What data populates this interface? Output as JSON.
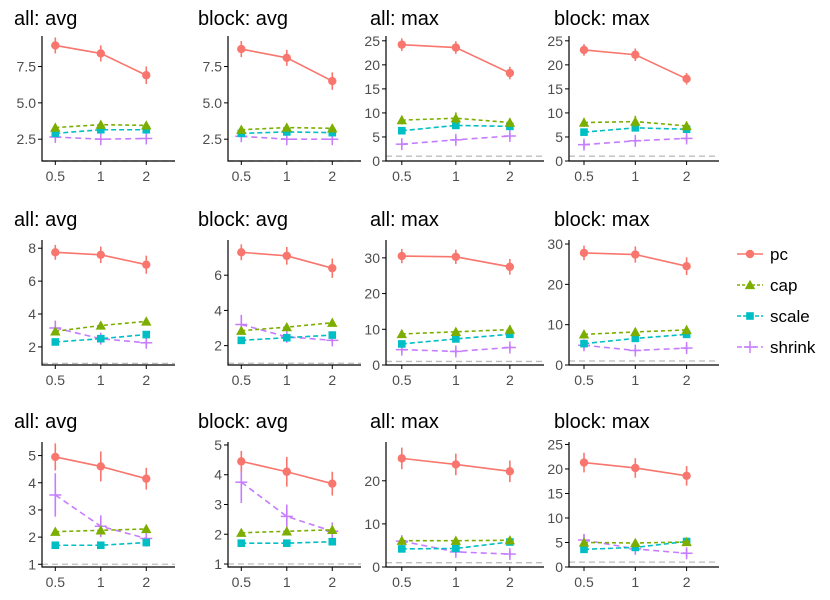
{
  "colors": {
    "pc": "#F8766D",
    "cap": "#7CAE00",
    "scale": "#00BFC4",
    "shrink": "#C77CFF",
    "reference": "#BEBEBE",
    "axis": "#000000"
  },
  "legend": {
    "entries": [
      {
        "key": "pc",
        "label": "pc",
        "icon": "circle-icon"
      },
      {
        "key": "cap",
        "label": "cap",
        "icon": "triangle-icon"
      },
      {
        "key": "scale",
        "label": "scale",
        "icon": "square-icon"
      },
      {
        "key": "shrink",
        "label": "shrink",
        "icon": "plus-icon"
      }
    ]
  },
  "chart_data": [
    {
      "type": "line",
      "title": "all: avg",
      "x": [
        0.5,
        1,
        2
      ],
      "x_labels": [
        "0.5",
        "1",
        "2"
      ],
      "yticks": [
        2.5,
        5.0,
        7.5
      ],
      "ytick_labels": [
        "2.5",
        "5.0",
        "7.5"
      ],
      "ylim": [
        1.0,
        9.6
      ],
      "reference_y": 1.0,
      "series": [
        {
          "name": "pc",
          "values": [
            8.95,
            8.4,
            6.9
          ],
          "err": [
            0.55,
            0.55,
            0.6
          ]
        },
        {
          "name": "cap",
          "values": [
            3.3,
            3.5,
            3.45
          ],
          "err": [
            0.1,
            0.1,
            0.1
          ]
        },
        {
          "name": "scale",
          "values": [
            2.9,
            3.15,
            3.15
          ],
          "err": [
            0.1,
            0.1,
            0.1
          ]
        },
        {
          "name": "shrink",
          "values": [
            2.65,
            2.5,
            2.55
          ],
          "err": [
            0.25,
            0.15,
            0.15
          ]
        }
      ]
    },
    {
      "type": "line",
      "title": "block: avg",
      "x": [
        0.5,
        1,
        2
      ],
      "x_labels": [
        "0.5",
        "1",
        "2"
      ],
      "yticks": [
        2.5,
        5.0,
        7.5
      ],
      "ytick_labels": [
        "2.5",
        "5.0",
        "7.5"
      ],
      "ylim": [
        1.0,
        9.6
      ],
      "reference_y": 1.0,
      "series": [
        {
          "name": "pc",
          "values": [
            8.7,
            8.1,
            6.5
          ],
          "err": [
            0.55,
            0.55,
            0.6
          ]
        },
        {
          "name": "cap",
          "values": [
            3.15,
            3.3,
            3.25
          ],
          "err": [
            0.1,
            0.1,
            0.1
          ]
        },
        {
          "name": "scale",
          "values": [
            2.9,
            3.0,
            2.95
          ],
          "err": [
            0.1,
            0.1,
            0.1
          ]
        },
        {
          "name": "shrink",
          "values": [
            2.7,
            2.5,
            2.5
          ],
          "err": [
            0.25,
            0.15,
            0.15
          ]
        }
      ]
    },
    {
      "type": "line",
      "title": "all: max",
      "x": [
        0.5,
        1,
        2
      ],
      "x_labels": [
        "0.5",
        "1",
        "2"
      ],
      "yticks": [
        0,
        5,
        10,
        15,
        20,
        25
      ],
      "ytick_labels": [
        "0",
        "5",
        "10",
        "15",
        "20",
        "25"
      ],
      "ylim": [
        0,
        26
      ],
      "reference_y": 1.0,
      "series": [
        {
          "name": "pc",
          "values": [
            24.2,
            23.6,
            18.3
          ],
          "err": [
            1.3,
            1.3,
            1.3
          ]
        },
        {
          "name": "cap",
          "values": [
            8.5,
            8.9,
            8.0
          ],
          "err": [
            0.9,
            1.2,
            0.9
          ]
        },
        {
          "name": "scale",
          "values": [
            6.3,
            7.4,
            7.2
          ],
          "err": [
            0.6,
            0.6,
            0.6
          ]
        },
        {
          "name": "shrink",
          "values": [
            3.5,
            4.4,
            5.2
          ],
          "err": [
            0.8,
            0.7,
            0.7
          ]
        }
      ]
    },
    {
      "type": "line",
      "title": "block: max",
      "x": [
        0.5,
        1,
        2
      ],
      "x_labels": [
        "0.5",
        "1",
        "2"
      ],
      "yticks": [
        0,
        5,
        10,
        15,
        20,
        25
      ],
      "ytick_labels": [
        "0",
        "5",
        "10",
        "15",
        "20",
        "25"
      ],
      "ylim": [
        0,
        26
      ],
      "reference_y": 1.0,
      "series": [
        {
          "name": "pc",
          "values": [
            23.1,
            22.1,
            17.1
          ],
          "err": [
            1.2,
            1.3,
            1.2
          ]
        },
        {
          "name": "cap",
          "values": [
            8.0,
            8.2,
            7.3
          ],
          "err": [
            0.9,
            1.2,
            0.9
          ]
        },
        {
          "name": "scale",
          "values": [
            6.0,
            6.9,
            6.6
          ],
          "err": [
            0.6,
            0.6,
            0.6
          ]
        },
        {
          "name": "shrink",
          "values": [
            3.4,
            4.2,
            4.7
          ],
          "err": [
            0.8,
            0.7,
            0.7
          ]
        }
      ]
    },
    {
      "type": "line",
      "title": "all: avg",
      "x": [
        0.5,
        1,
        2
      ],
      "x_labels": [
        "0.5",
        "1",
        "2"
      ],
      "yticks": [
        2,
        4,
        6,
        8
      ],
      "ytick_labels": [
        "2",
        "4",
        "6",
        "8"
      ],
      "ylim": [
        0.9,
        8.5
      ],
      "reference_y": 1.0,
      "series": [
        {
          "name": "pc",
          "values": [
            7.75,
            7.6,
            7.0
          ],
          "err": [
            0.45,
            0.5,
            0.55
          ]
        },
        {
          "name": "cap",
          "values": [
            2.95,
            3.3,
            3.55
          ],
          "err": [
            0.15,
            0.15,
            0.2
          ]
        },
        {
          "name": "scale",
          "values": [
            2.3,
            2.5,
            2.75
          ],
          "err": [
            0.15,
            0.15,
            0.15
          ]
        },
        {
          "name": "shrink",
          "values": [
            3.15,
            2.5,
            2.25
          ],
          "err": [
            0.45,
            0.3,
            0.25
          ]
        }
      ]
    },
    {
      "type": "line",
      "title": "block: avg",
      "x": [
        0.5,
        1,
        2
      ],
      "x_labels": [
        "0.5",
        "1",
        "2"
      ],
      "yticks": [
        2,
        4,
        6
      ],
      "ytick_labels": [
        "2",
        "4",
        "6"
      ],
      "ylim": [
        0.9,
        8.0
      ],
      "reference_y": 1.0,
      "series": [
        {
          "name": "pc",
          "values": [
            7.3,
            7.1,
            6.4
          ],
          "err": [
            0.45,
            0.5,
            0.55
          ]
        },
        {
          "name": "cap",
          "values": [
            2.85,
            3.05,
            3.3
          ],
          "err": [
            0.15,
            0.15,
            0.2
          ]
        },
        {
          "name": "scale",
          "values": [
            2.3,
            2.45,
            2.6
          ],
          "err": [
            0.15,
            0.15,
            0.15
          ]
        },
        {
          "name": "shrink",
          "values": [
            3.2,
            2.5,
            2.3
          ],
          "err": [
            0.55,
            0.3,
            0.25
          ]
        }
      ]
    },
    {
      "type": "line",
      "title": "all: max",
      "x": [
        0.5,
        1,
        2
      ],
      "x_labels": [
        "0.5",
        "1",
        "2"
      ],
      "yticks": [
        0,
        10,
        20,
        30
      ],
      "ytick_labels": [
        "0",
        "10",
        "20",
        "30"
      ],
      "ylim": [
        0,
        35
      ],
      "reference_y": 1.0,
      "series": [
        {
          "name": "pc",
          "values": [
            30.5,
            30.3,
            27.5
          ],
          "err": [
            2.0,
            2.0,
            2.2
          ]
        },
        {
          "name": "cap",
          "values": [
            8.7,
            9.3,
            9.9
          ],
          "err": [
            1.0,
            1.0,
            1.2
          ]
        },
        {
          "name": "scale",
          "values": [
            5.9,
            7.3,
            8.6
          ],
          "err": [
            0.8,
            0.8,
            0.8
          ]
        },
        {
          "name": "shrink",
          "values": [
            4.3,
            3.8,
            4.9
          ],
          "err": [
            1.0,
            0.8,
            0.8
          ]
        }
      ]
    },
    {
      "type": "line",
      "title": "block: max",
      "x": [
        0.5,
        1,
        2
      ],
      "x_labels": [
        "0.5",
        "1",
        "2"
      ],
      "yticks": [
        0,
        10,
        20,
        30
      ],
      "ytick_labels": [
        "0",
        "10",
        "20",
        "30"
      ],
      "ylim": [
        0,
        31
      ],
      "reference_y": 1.0,
      "series": [
        {
          "name": "pc",
          "values": [
            27.8,
            27.4,
            24.5
          ],
          "err": [
            1.8,
            2.0,
            2.2
          ]
        },
        {
          "name": "cap",
          "values": [
            7.6,
            8.2,
            8.7
          ],
          "err": [
            0.9,
            1.0,
            1.1
          ]
        },
        {
          "name": "scale",
          "values": [
            5.3,
            6.6,
            7.6
          ],
          "err": [
            0.8,
            0.8,
            0.8
          ]
        },
        {
          "name": "shrink",
          "values": [
            4.9,
            3.6,
            4.2
          ],
          "err": [
            1.0,
            0.8,
            0.8
          ]
        }
      ]
    },
    {
      "type": "line",
      "title": "all: avg",
      "x": [
        0.5,
        1,
        2
      ],
      "x_labels": [
        "0.5",
        "1",
        "2"
      ],
      "yticks": [
        1,
        2,
        3,
        4,
        5
      ],
      "ytick_labels": [
        "1",
        "2",
        "3",
        "4",
        "5"
      ],
      "ylim": [
        0.9,
        5.5
      ],
      "reference_y": 1.0,
      "series": [
        {
          "name": "pc",
          "values": [
            4.95,
            4.6,
            4.15
          ],
          "err": [
            0.5,
            0.55,
            0.4
          ]
        },
        {
          "name": "cap",
          "values": [
            2.2,
            2.25,
            2.3
          ],
          "err": [
            0.1,
            0.1,
            0.1
          ]
        },
        {
          "name": "scale",
          "values": [
            1.7,
            1.7,
            1.8
          ],
          "err": [
            0.1,
            0.1,
            0.1
          ]
        },
        {
          "name": "shrink",
          "values": [
            3.55,
            2.4,
            1.95
          ],
          "err": [
            0.8,
            0.4,
            0.3
          ]
        }
      ]
    },
    {
      "type": "line",
      "title": "block: avg",
      "x": [
        0.5,
        1,
        2
      ],
      "x_labels": [
        "0.5",
        "1",
        "2"
      ],
      "yticks": [
        1,
        2,
        3,
        4,
        5
      ],
      "ytick_labels": [
        "1",
        "2",
        "3",
        "4",
        "5"
      ],
      "ylim": [
        0.9,
        5.1
      ],
      "reference_y": 1.0,
      "series": [
        {
          "name": "pc",
          "values": [
            4.45,
            4.1,
            3.7
          ],
          "err": [
            0.35,
            0.5,
            0.4
          ]
        },
        {
          "name": "cap",
          "values": [
            2.05,
            2.1,
            2.15
          ],
          "err": [
            0.1,
            0.1,
            0.1
          ]
        },
        {
          "name": "scale",
          "values": [
            1.7,
            1.7,
            1.75
          ],
          "err": [
            0.1,
            0.1,
            0.1
          ]
        },
        {
          "name": "shrink",
          "values": [
            3.75,
            2.6,
            2.1
          ],
          "err": [
            0.7,
            0.4,
            0.3
          ]
        }
      ]
    },
    {
      "type": "line",
      "title": "all: max",
      "x": [
        0.5,
        1,
        2
      ],
      "x_labels": [
        "0.5",
        "1",
        "2"
      ],
      "yticks": [
        0,
        10,
        20
      ],
      "ytick_labels": [
        "0",
        "10",
        "20"
      ],
      "ylim": [
        0,
        29
      ],
      "reference_y": 1.0,
      "series": [
        {
          "name": "pc",
          "values": [
            25.2,
            23.8,
            22.2
          ],
          "err": [
            2.5,
            2.5,
            2.5
          ]
        },
        {
          "name": "cap",
          "values": [
            6.1,
            6.1,
            6.2
          ],
          "err": [
            0.6,
            0.6,
            0.6
          ]
        },
        {
          "name": "scale",
          "values": [
            4.2,
            4.3,
            5.8
          ],
          "err": [
            0.6,
            0.6,
            0.6
          ]
        },
        {
          "name": "shrink",
          "values": [
            6.0,
            3.5,
            3.0
          ],
          "err": [
            1.0,
            0.8,
            0.8
          ]
        }
      ]
    },
    {
      "type": "line",
      "title": "block: max",
      "x": [
        0.5,
        1,
        2
      ],
      "x_labels": [
        "0.5",
        "1",
        "2"
      ],
      "yticks": [
        0,
        5,
        10,
        15,
        20,
        25
      ],
      "ytick_labels": [
        "0",
        "5",
        "10",
        "15",
        "20",
        "25"
      ],
      "ylim": [
        0,
        25.5
      ],
      "reference_y": 1.0,
      "series": [
        {
          "name": "pc",
          "values": [
            21.3,
            20.2,
            18.6
          ],
          "err": [
            2.0,
            2.0,
            2.0
          ]
        },
        {
          "name": "cap",
          "values": [
            5.0,
            4.9,
            5.1
          ],
          "err": [
            0.5,
            0.5,
            0.5
          ]
        },
        {
          "name": "scale",
          "values": [
            3.6,
            4.0,
            5.2
          ],
          "err": [
            0.5,
            0.5,
            0.5
          ]
        },
        {
          "name": "shrink",
          "values": [
            5.5,
            3.7,
            2.8
          ],
          "err": [
            1.2,
            0.8,
            0.8
          ]
        }
      ]
    }
  ]
}
